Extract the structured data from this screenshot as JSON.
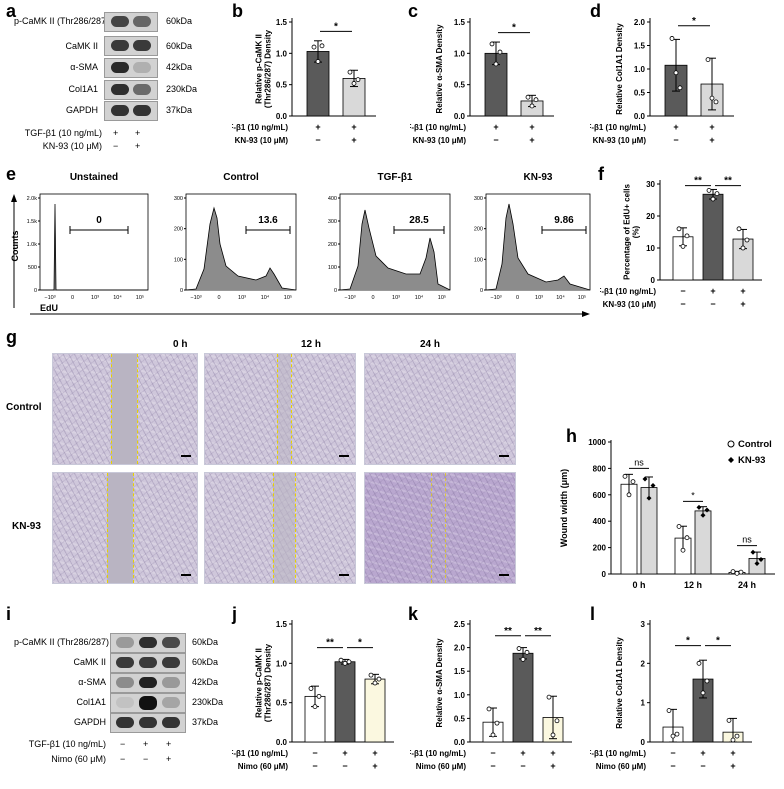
{
  "panels": {
    "a": "a",
    "b": "b",
    "c": "c",
    "d": "d",
    "e": "e",
    "f": "f",
    "g": "g",
    "h": "h",
    "i": "i",
    "j": "j",
    "k": "k",
    "l": "l"
  },
  "blot_a": {
    "proteins": [
      "p-CaMK II (Thr286/287)",
      "CaMK II",
      "α-SMA",
      "Col1A1",
      "GAPDH"
    ],
    "sizes": [
      "60kDa",
      "60kDa",
      "42kDa",
      "230kDa",
      "37kDa"
    ],
    "conditions": [
      "TGF-β1 (10 ng/mL)",
      "KN-93 (10 μM)"
    ],
    "signs": [
      [
        "+",
        "+"
      ],
      [
        "−",
        "+"
      ]
    ]
  },
  "blot_i": {
    "proteins": [
      "p-CaMK II (Thr286/287)",
      "CaMK II",
      "α-SMA",
      "Col1A1",
      "GAPDH"
    ],
    "sizes": [
      "60kDa",
      "60kDa",
      "42kDa",
      "230kDa",
      "37kDa"
    ],
    "conditions": [
      "TGF-β1 (10 ng/mL)",
      "Nimo (60 μM)"
    ],
    "signs": [
      [
        "−",
        "+",
        "+"
      ],
      [
        "−",
        "−",
        "+"
      ]
    ]
  },
  "colors": {
    "dark": "#5a5a5a",
    "light": "#d9d9d9",
    "white": "#ffffff",
    "cream": "#fbf8e0",
    "dash": "#e8d300"
  },
  "chart_data": [
    {
      "id": "b",
      "type": "bar",
      "ylabel": "Relative p-CaMK II (Thr286/287) Density",
      "ylim": [
        0,
        1.5
      ],
      "yticks": [
        "0.0",
        "0.5",
        "1.0",
        "1.5"
      ],
      "ytick_vals": [
        0,
        0.5,
        1.0,
        1.5
      ],
      "values": [
        1.03,
        0.6
      ],
      "errors": [
        0.17,
        0.13
      ],
      "points": [
        [
          1.1,
          0.87,
          1.12
        ],
        [
          0.7,
          0.52,
          0.58
        ]
      ],
      "colors": [
        "#5a5a5a",
        "#d9d9d9"
      ],
      "significance": [
        {
          "from": 0,
          "to": 1,
          "label": "*",
          "y": 1.35
        }
      ],
      "conditions": [
        "TGF-β1 (10 ng/mL)",
        "KN-93 (10 μM)"
      ],
      "signs": [
        [
          "+",
          "+"
        ],
        [
          "−",
          "+"
        ]
      ]
    },
    {
      "id": "c",
      "type": "bar",
      "ylabel": "Relative α-SMA Density",
      "ylim": [
        0,
        1.5
      ],
      "yticks": [
        "0.0",
        "0.5",
        "1.0",
        "1.5"
      ],
      "ytick_vals": [
        0,
        0.5,
        1.0,
        1.5
      ],
      "values": [
        1.0,
        0.24
      ],
      "errors": [
        0.18,
        0.09
      ],
      "points": [
        [
          1.15,
          0.83,
          1.02
        ],
        [
          0.3,
          0.16,
          0.26
        ]
      ],
      "colors": [
        "#5a5a5a",
        "#d9d9d9"
      ],
      "significance": [
        {
          "from": 0,
          "to": 1,
          "label": "*",
          "y": 1.33
        }
      ],
      "conditions": [
        "TGF-β1 (10 ng/mL)",
        "KN-93 (10 μM)"
      ],
      "signs": [
        [
          "+",
          "+"
        ],
        [
          "−",
          "+"
        ]
      ]
    },
    {
      "id": "d",
      "type": "bar",
      "ylabel": "Relative Col1A1 Density",
      "ylim": [
        0,
        2.0
      ],
      "yticks": [
        "0.0",
        "0.5",
        "1.0",
        "1.5",
        "2.0"
      ],
      "ytick_vals": [
        0,
        0.5,
        1.0,
        1.5,
        2.0
      ],
      "values": [
        1.08,
        0.68
      ],
      "errors": [
        0.55,
        0.55
      ],
      "points": [
        [
          1.65,
          0.92,
          0.6
        ],
        [
          1.2,
          0.38,
          0.3
        ]
      ],
      "colors": [
        "#5a5a5a",
        "#d9d9d9"
      ],
      "significance": [
        {
          "from": 0,
          "to": 1,
          "label": "*",
          "y": 1.92
        }
      ],
      "conditions": [
        "TGF-β1 (10 ng/mL)",
        "KN-93 (10 μM)"
      ],
      "signs": [
        [
          "+",
          "+"
        ],
        [
          "−",
          "+"
        ]
      ]
    },
    {
      "id": "e",
      "type": "histogram",
      "xlabel": "EdU",
      "ylabel": "Counts",
      "xticks": [
        "−10³",
        "0",
        "10³",
        "10⁴",
        "10⁵"
      ],
      "subplots": [
        {
          "title": "Unstained",
          "gate_value": "0",
          "ymax_label": "2.0k",
          "yticks": [
            "0",
            "500",
            "1.0k",
            "1.5k",
            "2.0k"
          ]
        },
        {
          "title": "Control",
          "gate_value": "13.6",
          "ymax_label": "300",
          "yticks": [
            "0",
            "100",
            "200",
            "300"
          ]
        },
        {
          "title": "TGF-β1",
          "gate_value": "28.5",
          "ymax_label": "400",
          "yticks": [
            "0",
            "100",
            "200",
            "300",
            "400"
          ]
        },
        {
          "title": "KN-93",
          "gate_value": "9.86",
          "ymax_label": "300",
          "yticks": [
            "0",
            "100",
            "200",
            "300"
          ]
        }
      ]
    },
    {
      "id": "f",
      "type": "bar",
      "ylabel": "Percentage of EdU+ cells (%)",
      "ylim": [
        0,
        30
      ],
      "yticks": [
        "0",
        "10",
        "20",
        "30"
      ],
      "ytick_vals": [
        0,
        10,
        20,
        30
      ],
      "values": [
        13.5,
        26.8,
        12.8
      ],
      "errors": [
        2.8,
        1.5,
        3.0
      ],
      "points": [
        [
          16.0,
          10.5,
          13.8
        ],
        [
          28.0,
          25.3,
          27.0
        ],
        [
          16.0,
          10.0,
          12.5
        ]
      ],
      "colors": [
        "#ffffff",
        "#5a5a5a",
        "#d9d9d9"
      ],
      "significance": [
        {
          "from": 0,
          "to": 1,
          "label": "**",
          "y": 29.5
        },
        {
          "from": 1,
          "to": 2,
          "label": "**",
          "y": 29.5
        }
      ],
      "conditions": [
        "TGF-β1 (10 ng/mL)",
        "KN-93 (10 μM)"
      ],
      "signs": [
        [
          "−",
          "+",
          "+"
        ],
        [
          "−",
          "−",
          "+"
        ]
      ]
    },
    {
      "id": "h",
      "type": "grouped-bar",
      "ylabel": "Wound width (μm)",
      "categories": [
        "0 h",
        "12 h",
        "24 h"
      ],
      "ylim": [
        0,
        1000
      ],
      "yticks": [
        "0",
        "200",
        "400",
        "600",
        "800",
        "1000"
      ],
      "ytick_vals": [
        0,
        200,
        400,
        600,
        800,
        1000
      ],
      "series": [
        {
          "name": "Control",
          "values": [
            680,
            272,
            12
          ],
          "errors": [
            75,
            90,
            8
          ],
          "points": [
            [
              740,
              600,
              700
            ],
            [
              360,
              180,
              275
            ],
            [
              18,
              5,
              14
            ]
          ],
          "color": "#ffffff"
        },
        {
          "name": "KN-93",
          "values": [
            655,
            478,
            118
          ],
          "errors": [
            80,
            32,
            48
          ],
          "points": [
            [
              720,
              575,
              670
            ],
            [
              505,
              445,
              485
            ],
            [
              165,
              80,
              110
            ]
          ],
          "color": "#d9d9d9"
        }
      ],
      "significance": [
        {
          "group": 0,
          "label": "ns",
          "y": 800
        },
        {
          "group": 1,
          "label": "*",
          "y": 550
        },
        {
          "group": 2,
          "label": "ns",
          "y": 215
        }
      ]
    },
    {
      "id": "j",
      "type": "bar",
      "ylabel": "Relative p-CaMK II (Thr286/287) Density",
      "ylim": [
        0,
        1.5
      ],
      "yticks": [
        "0.0",
        "0.5",
        "1.0",
        "1.5"
      ],
      "ytick_vals": [
        0,
        0.5,
        1.0,
        1.5
      ],
      "values": [
        0.58,
        1.02,
        0.8
      ],
      "errors": [
        0.13,
        0.03,
        0.06
      ],
      "points": [
        [
          0.68,
          0.45,
          0.58
        ],
        [
          1.04,
          1.0,
          1.02
        ],
        [
          0.85,
          0.75,
          0.8
        ]
      ],
      "colors": [
        "#ffffff",
        "#5a5a5a",
        "#fbf8e0"
      ],
      "significance": [
        {
          "from": 0,
          "to": 1,
          "label": "**",
          "y": 1.2
        },
        {
          "from": 1,
          "to": 2,
          "label": "*",
          "y": 1.2
        }
      ],
      "conditions": [
        "TGF-β1 (10 ng/mL)",
        "Nimo (60 μM)"
      ],
      "signs": [
        [
          "−",
          "+",
          "+"
        ],
        [
          "−",
          "−",
          "+"
        ]
      ]
    },
    {
      "id": "k",
      "type": "bar",
      "ylabel": "Relative α-SMA Density",
      "ylim": [
        0,
        2.5
      ],
      "yticks": [
        "0.0",
        "0.5",
        "1.0",
        "1.5",
        "2.0",
        "2.5"
      ],
      "ytick_vals": [
        0,
        0.5,
        1.0,
        1.5,
        2.0,
        2.5
      ],
      "values": [
        0.42,
        1.88,
        0.52
      ],
      "errors": [
        0.3,
        0.12,
        0.45
      ],
      "points": [
        [
          0.7,
          0.15,
          0.4
        ],
        [
          1.98,
          1.75,
          1.9
        ],
        [
          0.95,
          0.15,
          0.45
        ]
      ],
      "colors": [
        "#ffffff",
        "#5a5a5a",
        "#fbf8e0"
      ],
      "significance": [
        {
          "from": 0,
          "to": 1,
          "label": "**",
          "y": 2.25
        },
        {
          "from": 1,
          "to": 2,
          "label": "**",
          "y": 2.25
        }
      ],
      "conditions": [
        "TGF-β1 (10 ng/mL)",
        "Nimo (60 μM)"
      ],
      "signs": [
        [
          "−",
          "+",
          "+"
        ],
        [
          "−",
          "−",
          "+"
        ]
      ]
    },
    {
      "id": "l",
      "type": "bar",
      "ylabel": "Relative Col1A1 Density",
      "ylim": [
        0,
        3.0
      ],
      "yticks": [
        "0",
        "1",
        "2",
        "3"
      ],
      "ytick_vals": [
        0,
        1,
        2,
        3
      ],
      "values": [
        0.38,
        1.6,
        0.25
      ],
      "errors": [
        0.45,
        0.48,
        0.35
      ],
      "points": [
        [
          0.8,
          0.15,
          0.2
        ],
        [
          2.0,
          1.25,
          1.55
        ],
        [
          0.55,
          0.05,
          0.15
        ]
      ],
      "colors": [
        "#ffffff",
        "#5a5a5a",
        "#fbf8e0"
      ],
      "significance": [
        {
          "from": 0,
          "to": 1,
          "label": "*",
          "y": 2.45
        },
        {
          "from": 1,
          "to": 2,
          "label": "*",
          "y": 2.45
        }
      ],
      "conditions": [
        "TGF-β1 (10 ng/mL)",
        "Nimo (60 μM)"
      ],
      "signs": [
        [
          "−",
          "+",
          "+"
        ],
        [
          "−",
          "−",
          "+"
        ]
      ]
    }
  ],
  "wound": {
    "timepoints": [
      "0 h",
      "12 h",
      "24 h"
    ],
    "rows": [
      "Control",
      "KN-93"
    ]
  }
}
